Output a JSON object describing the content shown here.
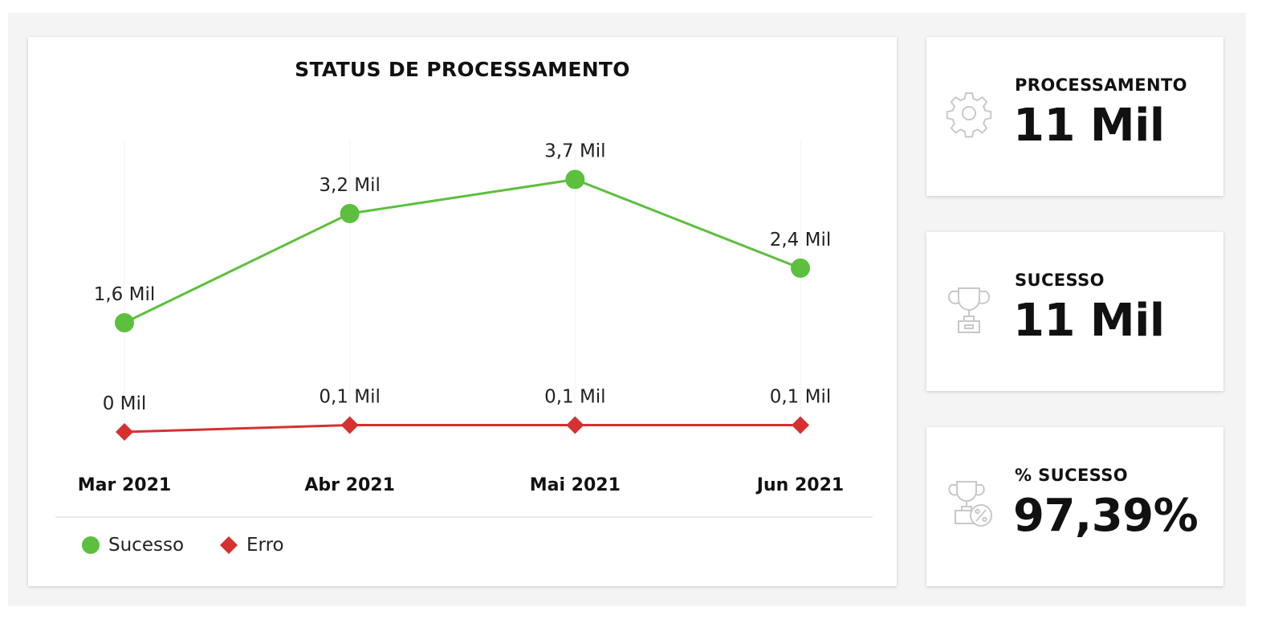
{
  "chart_data": {
    "type": "line",
    "title": "STATUS DE PROCESSAMENTO",
    "categories": [
      "Mar 2021",
      "Abr 2021",
      "Mai 2021",
      "Jun 2021"
    ],
    "series": [
      {
        "name": "Sucesso",
        "values": [
          1.6,
          3.2,
          3.7,
          2.4
        ],
        "labels": [
          "1,6 Mil",
          "3,2 Mil",
          "3,7 Mil",
          "2,4 Mil"
        ],
        "color": "#5cbf3d",
        "marker": "circle"
      },
      {
        "name": "Erro",
        "values": [
          0.0,
          0.1,
          0.1,
          0.1
        ],
        "labels": [
          "0 Mil",
          "0,1 Mil",
          "0,1 Mil",
          "0,1 Mil"
        ],
        "color": "#d63031",
        "marker": "diamond"
      }
    ],
    "ylim": [
      0,
      4
    ],
    "xlabel": "",
    "ylabel": "",
    "legend": "bottom-left",
    "grid": false
  },
  "kpis": [
    {
      "label": "PROCESSAMENTO",
      "value": "11 Mil",
      "icon": "gear-icon"
    },
    {
      "label": "SUCESSO",
      "value": "11 Mil",
      "icon": "trophy-icon"
    },
    {
      "label": "% SUCESSO",
      "value": "97,39%",
      "icon": "trophy-percent-icon"
    }
  ],
  "colors": {
    "background": "#f4f4f4",
    "card": "#ffffff",
    "icon": "#c8c8c8"
  }
}
